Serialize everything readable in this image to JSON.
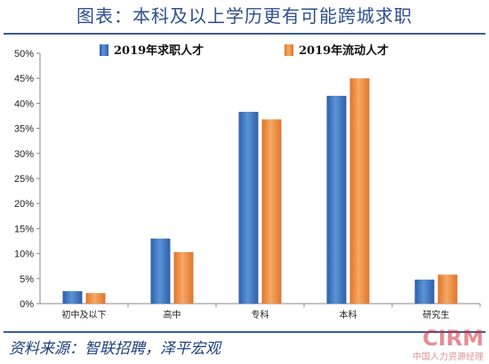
{
  "header": {
    "title": "图表：本科及以上学历更有可能跨城求职"
  },
  "footer": {
    "source": "资料来源：智联招聘，泽平宏观"
  },
  "watermark": {
    "logo": "CIRM",
    "text": "中国人力资源经理"
  },
  "colors": {
    "series1": "#3e76c0",
    "series2": "#f08a3a",
    "axis": "#888888"
  },
  "chart_data": {
    "type": "bar",
    "categories": [
      "初中及以下",
      "高中",
      "专科",
      "本科",
      "研究生"
    ],
    "series": [
      {
        "name": "2019年求职人才",
        "values": [
          2.5,
          13.0,
          38.3,
          41.5,
          4.8
        ]
      },
      {
        "name": "2019年流动人才",
        "values": [
          2.1,
          10.3,
          36.8,
          45.0,
          5.8
        ]
      }
    ],
    "yticks": [
      "0%",
      "5%",
      "10%",
      "15%",
      "20%",
      "25%",
      "30%",
      "35%",
      "40%",
      "45%",
      "50%"
    ],
    "ylim": [
      0,
      50
    ],
    "legend": "top"
  }
}
